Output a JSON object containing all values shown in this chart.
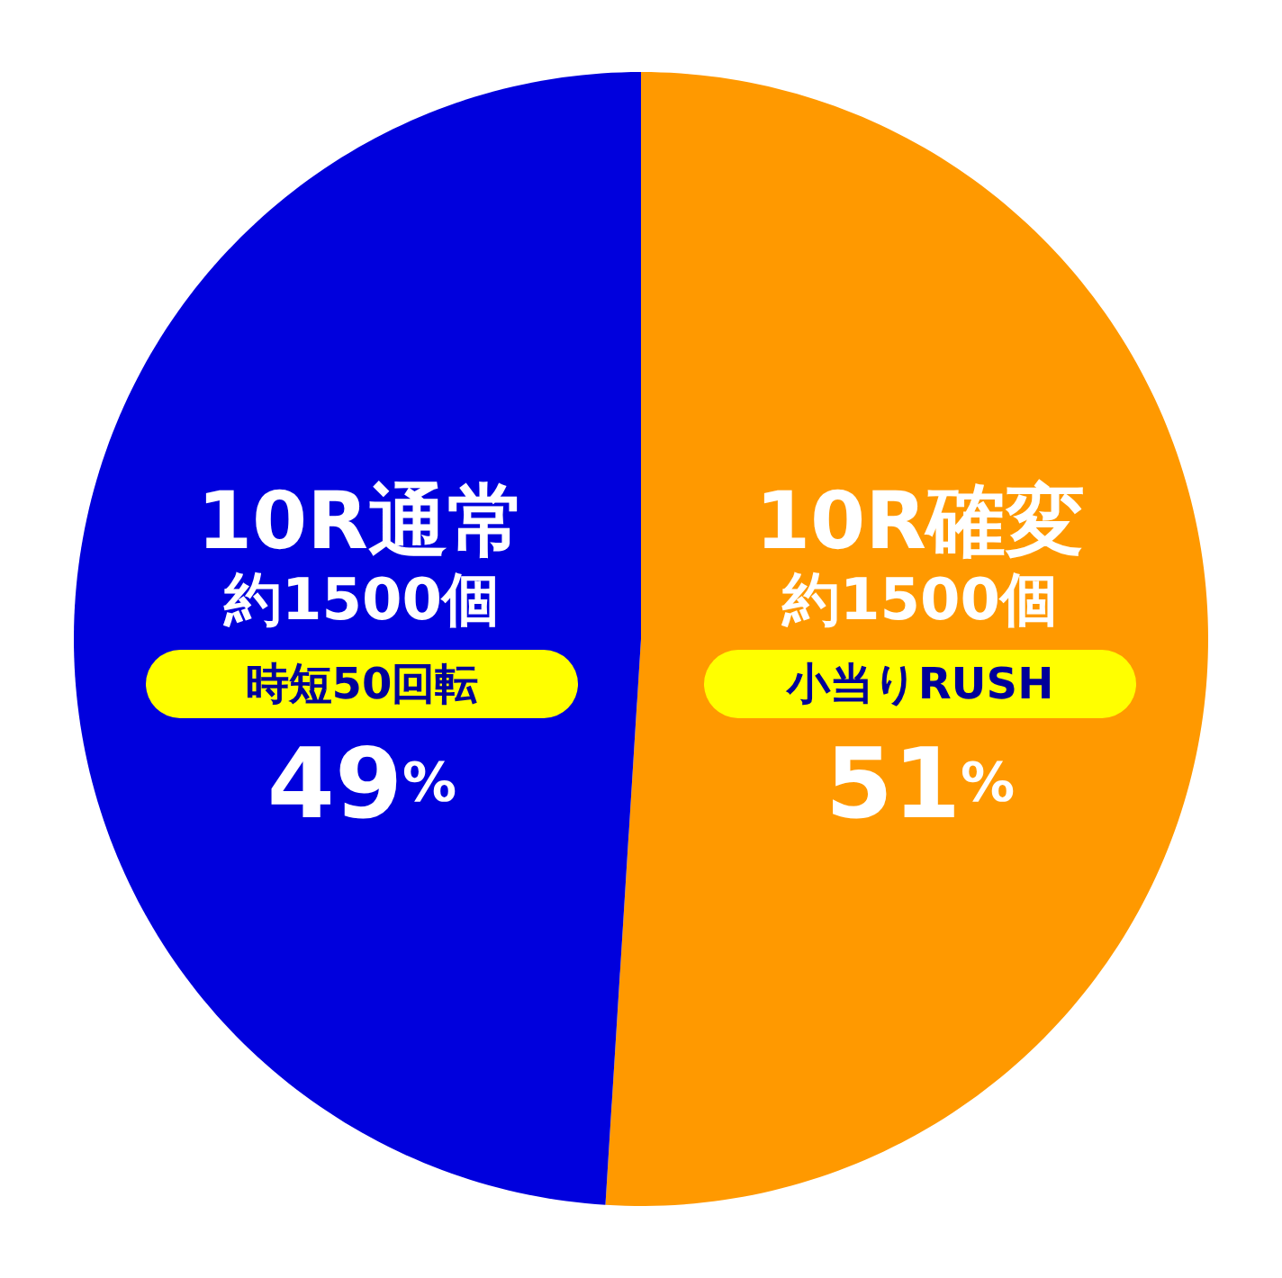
{
  "chart_data": {
    "type": "pie",
    "categories": [
      "10R確変",
      "10R通常"
    ],
    "values": [
      51,
      49
    ],
    "colors": [
      "#ff9900",
      "#0000dd"
    ],
    "value_labels": [
      "51%",
      "49%"
    ],
    "annotations": [
      "約1500個",
      "小当りRUSH",
      "約1500個",
      "時短50回転"
    ]
  }
}
